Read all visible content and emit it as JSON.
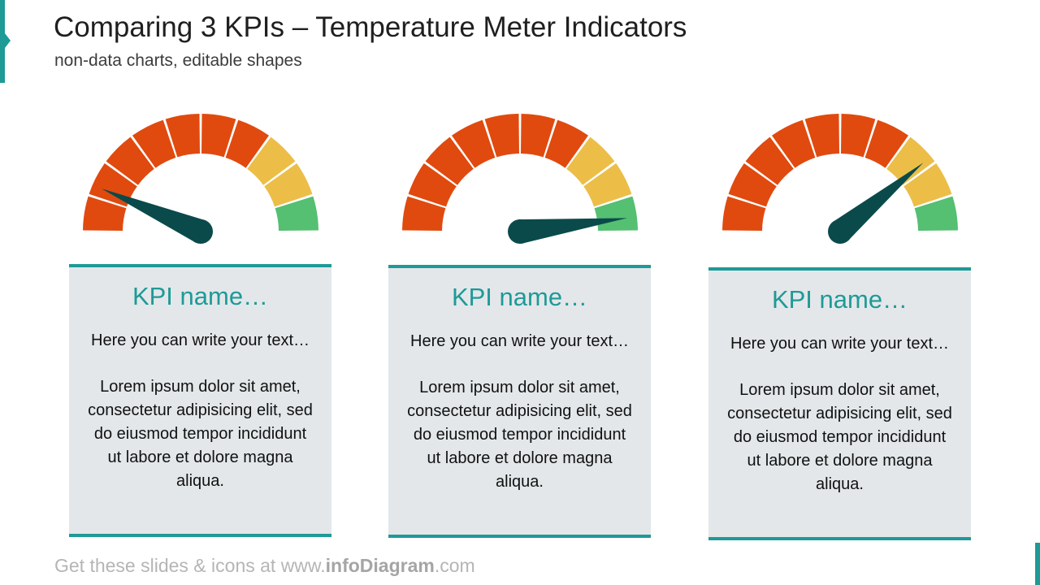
{
  "header": {
    "title": "Comparing 3 KPIs – Temperature Meter Indicators",
    "subtitle": "non-data charts, editable shapes"
  },
  "colors": {
    "accent": "#1e9a97",
    "red": "#e04a0f",
    "yellow": "#ecbe48",
    "green": "#55bf72",
    "needle": "#0b4a4a",
    "card_bg": "#e3e7ea"
  },
  "gauges": [
    {
      "needle_level": 0.13
    },
    {
      "needle_level": 0.96
    },
    {
      "needle_level": 0.78
    }
  ],
  "cards": [
    {
      "kpi_name": "KPI name…",
      "intro": "Here you can write your text…",
      "lorem": "Lorem ipsum dolor sit amet, consectetur adipisicing elit, sed do eiusmod tempor incididunt ut labore et dolore magna aliqua."
    },
    {
      "kpi_name": "KPI name…",
      "intro": "Here you can write your text…",
      "lorem": "Lorem ipsum dolor sit amet, consectetur adipisicing elit, sed do eiusmod tempor incididunt ut labore et dolore magna aliqua."
    },
    {
      "kpi_name": "KPI name…",
      "intro": "Here you can write your text…",
      "lorem": "Lorem ipsum dolor sit amet, consectetur adipisicing elit, sed do eiusmod tempor incididunt ut labore et dolore magna aliqua."
    }
  ],
  "footer": {
    "prefix": "Get these slides & icons at www.",
    "brand": "infoDiagram",
    "suffix": ".com"
  }
}
